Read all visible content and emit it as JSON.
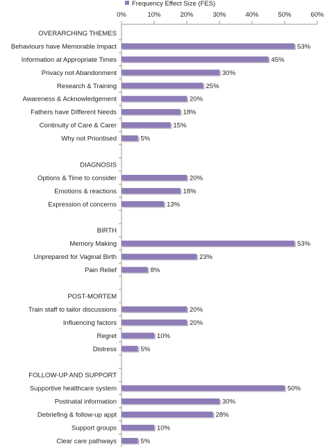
{
  "chart_data": {
    "type": "bar",
    "orientation": "horizontal",
    "legend": {
      "position": "top",
      "entries": [
        "Frequency Effect Size (FES)"
      ]
    },
    "series": [
      {
        "name": "Frequency Effect Size (FES)",
        "color": "#8E7CB6"
      }
    ],
    "xlim": [
      0,
      60
    ],
    "x_ticks": [
      "0%",
      "10%",
      "20%",
      "30%",
      "40%",
      "50%",
      "60%"
    ],
    "grid": false,
    "rows": [
      {
        "kind": "section",
        "label": "OVERARCHING THEMES"
      },
      {
        "kind": "bar",
        "label": "Behaviours have Memorable Impact",
        "value": 53,
        "value_label": "53%"
      },
      {
        "kind": "bar",
        "label": "Information at Appropriate Times",
        "value": 45,
        "value_label": "45%"
      },
      {
        "kind": "bar",
        "label": "Privacy not Abandonment",
        "value": 30,
        "value_label": "30%"
      },
      {
        "kind": "bar",
        "label": "Research & Training",
        "value": 25,
        "value_label": "25%"
      },
      {
        "kind": "bar",
        "label": "Awareness & Acknowledgement",
        "value": 20,
        "value_label": "20%"
      },
      {
        "kind": "bar",
        "label": "Fathers have Different Needs",
        "value": 18,
        "value_label": "18%"
      },
      {
        "kind": "bar",
        "label": "Continuity of Care & Carer",
        "value": 15,
        "value_label": "15%"
      },
      {
        "kind": "bar",
        "label": "Why not Prioritised",
        "value": 5,
        "value_label": "5%"
      },
      {
        "kind": "blank"
      },
      {
        "kind": "section",
        "label": "DIAGNOSIS"
      },
      {
        "kind": "bar",
        "label": "Options & Time to consider",
        "value": 20,
        "value_label": "20%"
      },
      {
        "kind": "bar",
        "label": "Emotions & reactions",
        "value": 18,
        "value_label": "18%"
      },
      {
        "kind": "bar",
        "label": "Expression of concerns",
        "value": 13,
        "value_label": "13%"
      },
      {
        "kind": "blank"
      },
      {
        "kind": "section",
        "label": "BIRTH"
      },
      {
        "kind": "bar",
        "label": "Memory Making",
        "value": 53,
        "value_label": "53%"
      },
      {
        "kind": "bar",
        "label": "Unprepared for Vaginal Birth",
        "value": 23,
        "value_label": "23%"
      },
      {
        "kind": "bar",
        "label": "Pain Relief",
        "value": 8,
        "value_label": "8%"
      },
      {
        "kind": "blank"
      },
      {
        "kind": "section",
        "label": "POST-MORTEM"
      },
      {
        "kind": "bar",
        "label": "Train staff to tailor discussions",
        "value": 20,
        "value_label": "20%"
      },
      {
        "kind": "bar",
        "label": "Influencing factors",
        "value": 20,
        "value_label": "20%"
      },
      {
        "kind": "bar",
        "label": "Regret",
        "value": 10,
        "value_label": "10%"
      },
      {
        "kind": "bar",
        "label": "Distress",
        "value": 5,
        "value_label": "5%"
      },
      {
        "kind": "blank"
      },
      {
        "kind": "section",
        "label": "FOLLOW-UP AND SUPPORT"
      },
      {
        "kind": "bar",
        "label": "Supportive healthcare system",
        "value": 50,
        "value_label": "50%"
      },
      {
        "kind": "bar",
        "label": "Postnatal information",
        "value": 30,
        "value_label": "30%"
      },
      {
        "kind": "bar",
        "label": "Debriefing & follow-up appt",
        "value": 28,
        "value_label": "28%"
      },
      {
        "kind": "bar",
        "label": "Support groups",
        "value": 10,
        "value_label": "10%"
      },
      {
        "kind": "bar",
        "label": "Clear care pathways",
        "value": 5,
        "value_label": "5%"
      }
    ]
  }
}
